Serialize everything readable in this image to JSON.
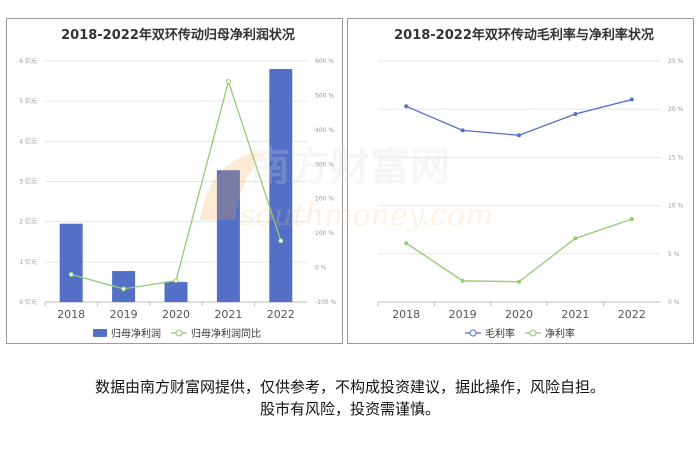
{
  "colors": {
    "bar": "#5470c6",
    "green_line": "#91cc75",
    "blue_line": "#5470c6",
    "axis": "#999999",
    "grid": "#e6e6e6"
  },
  "watermark": {
    "brand": "南方财富网",
    "site": "southmoney.com"
  },
  "disclaimer": {
    "line1": "数据由南方财富网提供，仅供参考，不构成投资建议，据此操作，风险自担。",
    "line2": "股市有风险，投资需谨慎。"
  },
  "chart_data": [
    {
      "type": "bar",
      "title": "2018-2022年双环传动归母净利润状况",
      "categories": [
        "2018",
        "2019",
        "2020",
        "2021",
        "2022"
      ],
      "series": [
        {
          "name": "归母净利润",
          "type": "bar",
          "axis": "left",
          "values": [
            1.95,
            0.77,
            0.5,
            3.28,
            5.8
          ]
        },
        {
          "name": "归母净利润同比",
          "type": "line",
          "axis": "right",
          "values": [
            -20,
            -62,
            -38,
            540,
            78
          ]
        }
      ],
      "y_left": {
        "ylim": [
          0,
          6
        ],
        "ticks": [
          "0 亿元",
          "1 亿元",
          "2 亿元",
          "3 亿元",
          "4 亿元",
          "5 亿元",
          "6 亿元"
        ]
      },
      "y_right": {
        "ylim": [
          -100,
          600
        ],
        "ticks": [
          "-100 %",
          "0 %",
          "100 %",
          "200 %",
          "300 %",
          "400 %",
          "500 %",
          "600 %"
        ]
      },
      "grid": true,
      "legend": "bottom"
    },
    {
      "type": "line",
      "title": "2018-2022年双环传动毛利率与净利率状况",
      "categories": [
        "2018",
        "2019",
        "2020",
        "2021",
        "2022"
      ],
      "series": [
        {
          "name": "毛利率",
          "values": [
            20.3,
            17.8,
            17.3,
            19.5,
            21.0
          ]
        },
        {
          "name": "净利率",
          "values": [
            6.1,
            2.2,
            2.1,
            6.6,
            8.6
          ]
        }
      ],
      "y_right": {
        "ylim": [
          0,
          25
        ],
        "ticks": [
          "0 %",
          "5 %",
          "10 %",
          "15 %",
          "20 %",
          "25 %"
        ]
      },
      "grid": true,
      "legend": "bottom"
    }
  ]
}
